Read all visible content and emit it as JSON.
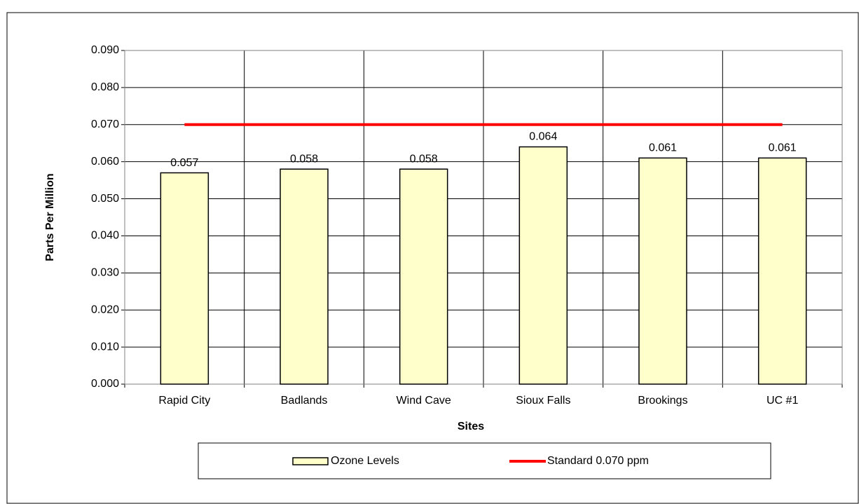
{
  "chart_data": {
    "type": "bar",
    "categories": [
      "Rapid City",
      "Badlands",
      "Wind Cave",
      "Sioux Falls",
      "Brookings",
      "UC #1"
    ],
    "series": [
      {
        "name": "Ozone Levels",
        "type": "bar",
        "color": "#ffffcc",
        "values": [
          0.057,
          0.058,
          0.058,
          0.064,
          0.061,
          0.061
        ]
      },
      {
        "name": "Standard 0.070 ppm",
        "type": "line",
        "color": "#ff0000",
        "values": [
          0.07,
          0.07,
          0.07,
          0.07,
          0.07,
          0.07
        ]
      }
    ],
    "x_label": "Sites",
    "y_label": "Parts Per Million",
    "ylim": [
      0,
      0.09
    ],
    "yticks": [
      {
        "value": 0,
        "label": "0.000"
      },
      {
        "value": 0.01,
        "label": "0.010"
      },
      {
        "value": 0.02,
        "label": "0.020"
      },
      {
        "value": 0.03,
        "label": "0.030"
      },
      {
        "value": 0.04,
        "label": "0.040"
      },
      {
        "value": 0.05,
        "label": "0.050"
      },
      {
        "value": 0.06,
        "label": "0.060"
      },
      {
        "value": 0.07,
        "label": "0.070"
      },
      {
        "value": 0.08,
        "label": "0.080"
      },
      {
        "value": 0.09,
        "label": "0.090"
      }
    ],
    "grid": true,
    "legend": "bottom"
  }
}
